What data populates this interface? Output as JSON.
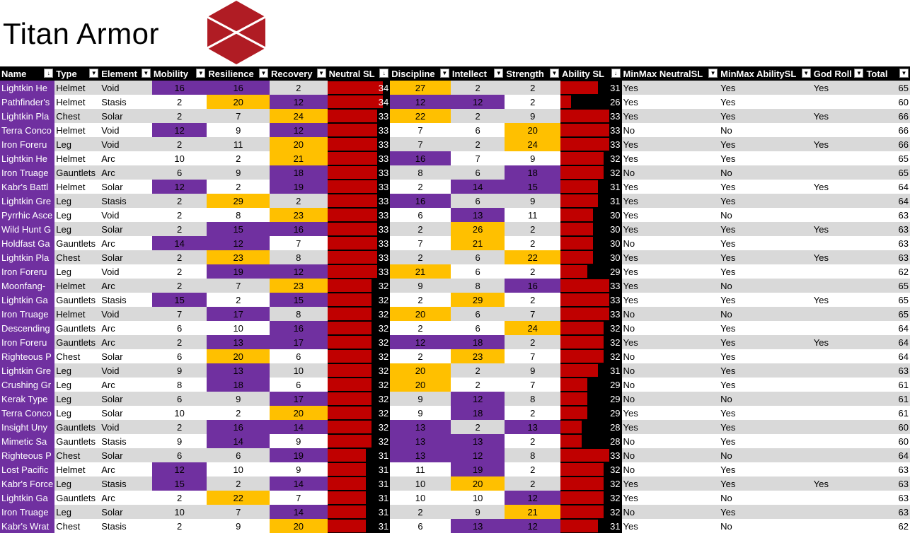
{
  "sheet_title": "Titan Armor",
  "logo_icon": "destiny-red-hexagon-logo",
  "colors": {
    "header_bg": "#000000",
    "name_bg": "#7030a0",
    "purple": "#7030a0",
    "orange": "#ffc000",
    "bar_red": "#c00000",
    "row_alt": "#d9d9d9"
  },
  "headers": [
    "Name",
    "Type",
    "Element",
    "Mobility",
    "Resilience",
    "Recovery",
    "Neutral SL",
    "Discipline",
    "Intellect",
    "Strength",
    "Ability SL",
    "MinMax NeutralSL",
    "MinMax AbilitySL",
    "God Roll",
    "Total"
  ],
  "rows": [
    [
      "Lightkin He",
      "Helmet",
      "Void",
      16,
      16,
      2,
      34,
      27,
      2,
      2,
      31,
      "Yes",
      "Yes",
      "Yes",
      65
    ],
    [
      "Pathfinder's",
      "Helmet",
      "Stasis",
      2,
      20,
      12,
      34,
      12,
      12,
      2,
      26,
      "Yes",
      "Yes",
      "",
      60
    ],
    [
      "Lightkin Pla",
      "Chest",
      "Solar",
      2,
      7,
      24,
      33,
      22,
      2,
      9,
      33,
      "Yes",
      "Yes",
      "Yes",
      66
    ],
    [
      "Terra Conco",
      "Helmet",
      "Void",
      12,
      9,
      12,
      33,
      7,
      6,
      20,
      33,
      "No",
      "No",
      "",
      66
    ],
    [
      "Iron Foreru",
      "Leg",
      "Void",
      2,
      11,
      20,
      33,
      7,
      2,
      24,
      33,
      "Yes",
      "Yes",
      "Yes",
      66
    ],
    [
      "Lightkin He",
      "Helmet",
      "Arc",
      10,
      2,
      21,
      33,
      16,
      7,
      9,
      32,
      "Yes",
      "Yes",
      "",
      65
    ],
    [
      "Iron Truage",
      "Gauntlets",
      "Arc",
      6,
      9,
      18,
      33,
      8,
      6,
      18,
      32,
      "No",
      "No",
      "",
      65
    ],
    [
      "Kabr's Battl",
      "Helmet",
      "Solar",
      12,
      2,
      19,
      33,
      2,
      14,
      15,
      31,
      "Yes",
      "Yes",
      "Yes",
      64
    ],
    [
      "Lightkin Gre",
      "Leg",
      "Stasis",
      2,
      29,
      2,
      33,
      16,
      6,
      9,
      31,
      "Yes",
      "Yes",
      "",
      64
    ],
    [
      "Pyrrhic Asce",
      "Leg",
      "Void",
      2,
      8,
      23,
      33,
      6,
      13,
      11,
      30,
      "Yes",
      "No",
      "",
      63
    ],
    [
      "Wild Hunt G",
      "Leg",
      "Solar",
      2,
      15,
      16,
      33,
      2,
      26,
      2,
      30,
      "Yes",
      "Yes",
      "Yes",
      63
    ],
    [
      "Holdfast Ga",
      "Gauntlets",
      "Arc",
      14,
      12,
      7,
      33,
      7,
      21,
      2,
      30,
      "No",
      "Yes",
      "",
      63
    ],
    [
      "Lightkin Pla",
      "Chest",
      "Solar",
      2,
      23,
      8,
      33,
      2,
      6,
      22,
      30,
      "Yes",
      "Yes",
      "Yes",
      63
    ],
    [
      "Iron Foreru",
      "Leg",
      "Void",
      2,
      19,
      12,
      33,
      21,
      6,
      2,
      29,
      "Yes",
      "Yes",
      "",
      62
    ],
    [
      "Moonfang-",
      "Helmet",
      "Arc",
      2,
      7,
      23,
      32,
      9,
      8,
      16,
      33,
      "Yes",
      "No",
      "",
      65
    ],
    [
      "Lightkin Ga",
      "Gauntlets",
      "Stasis",
      15,
      2,
      15,
      32,
      2,
      29,
      2,
      33,
      "Yes",
      "Yes",
      "Yes",
      65
    ],
    [
      "Iron Truage",
      "Helmet",
      "Void",
      7,
      17,
      8,
      32,
      20,
      6,
      7,
      33,
      "No",
      "No",
      "",
      65
    ],
    [
      "Descending",
      "Gauntlets",
      "Arc",
      6,
      10,
      16,
      32,
      2,
      6,
      24,
      32,
      "No",
      "Yes",
      "",
      64
    ],
    [
      "Iron Foreru",
      "Gauntlets",
      "Arc",
      2,
      13,
      17,
      32,
      12,
      18,
      2,
      32,
      "Yes",
      "Yes",
      "Yes",
      64
    ],
    [
      "Righteous P",
      "Chest",
      "Solar",
      6,
      20,
      6,
      32,
      2,
      23,
      7,
      32,
      "No",
      "Yes",
      "",
      64
    ],
    [
      "Lightkin Gre",
      "Leg",
      "Void",
      9,
      13,
      10,
      32,
      20,
      2,
      9,
      31,
      "No",
      "Yes",
      "",
      63
    ],
    [
      "Crushing Gr",
      "Leg",
      "Arc",
      8,
      18,
      6,
      32,
      20,
      2,
      7,
      29,
      "No",
      "Yes",
      "",
      61
    ],
    [
      "Kerak Type",
      "Leg",
      "Solar",
      6,
      9,
      17,
      32,
      9,
      12,
      8,
      29,
      "No",
      "No",
      "",
      61
    ],
    [
      "Terra Conco",
      "Leg",
      "Solar",
      10,
      2,
      20,
      32,
      9,
      18,
      2,
      29,
      "Yes",
      "Yes",
      "",
      61
    ],
    [
      "Insight Uny",
      "Gauntlets",
      "Void",
      2,
      16,
      14,
      32,
      13,
      2,
      13,
      28,
      "Yes",
      "Yes",
      "",
      60
    ],
    [
      "Mimetic Sa",
      "Gauntlets",
      "Stasis",
      9,
      14,
      9,
      32,
      13,
      13,
      2,
      28,
      "No",
      "Yes",
      "",
      60
    ],
    [
      "Righteous P",
      "Chest",
      "Solar",
      6,
      6,
      19,
      31,
      13,
      12,
      8,
      33,
      "No",
      "No",
      "",
      64
    ],
    [
      "Lost Pacific",
      "Helmet",
      "Arc",
      12,
      10,
      9,
      31,
      11,
      19,
      2,
      32,
      "No",
      "Yes",
      "",
      63
    ],
    [
      "Kabr's Force",
      "Leg",
      "Stasis",
      15,
      2,
      14,
      31,
      10,
      20,
      2,
      32,
      "Yes",
      "Yes",
      "Yes",
      63
    ],
    [
      "Lightkin Ga",
      "Gauntlets",
      "Arc",
      2,
      22,
      7,
      31,
      10,
      10,
      12,
      32,
      "Yes",
      "No",
      "",
      63
    ],
    [
      "Iron Truage",
      "Leg",
      "Solar",
      10,
      7,
      14,
      31,
      2,
      9,
      21,
      32,
      "No",
      "Yes",
      "",
      63
    ],
    [
      "Kabr's Wrat",
      "Chest",
      "Stasis",
      2,
      9,
      20,
      31,
      6,
      13,
      12,
      31,
      "Yes",
      "No",
      "",
      62
    ]
  ]
}
